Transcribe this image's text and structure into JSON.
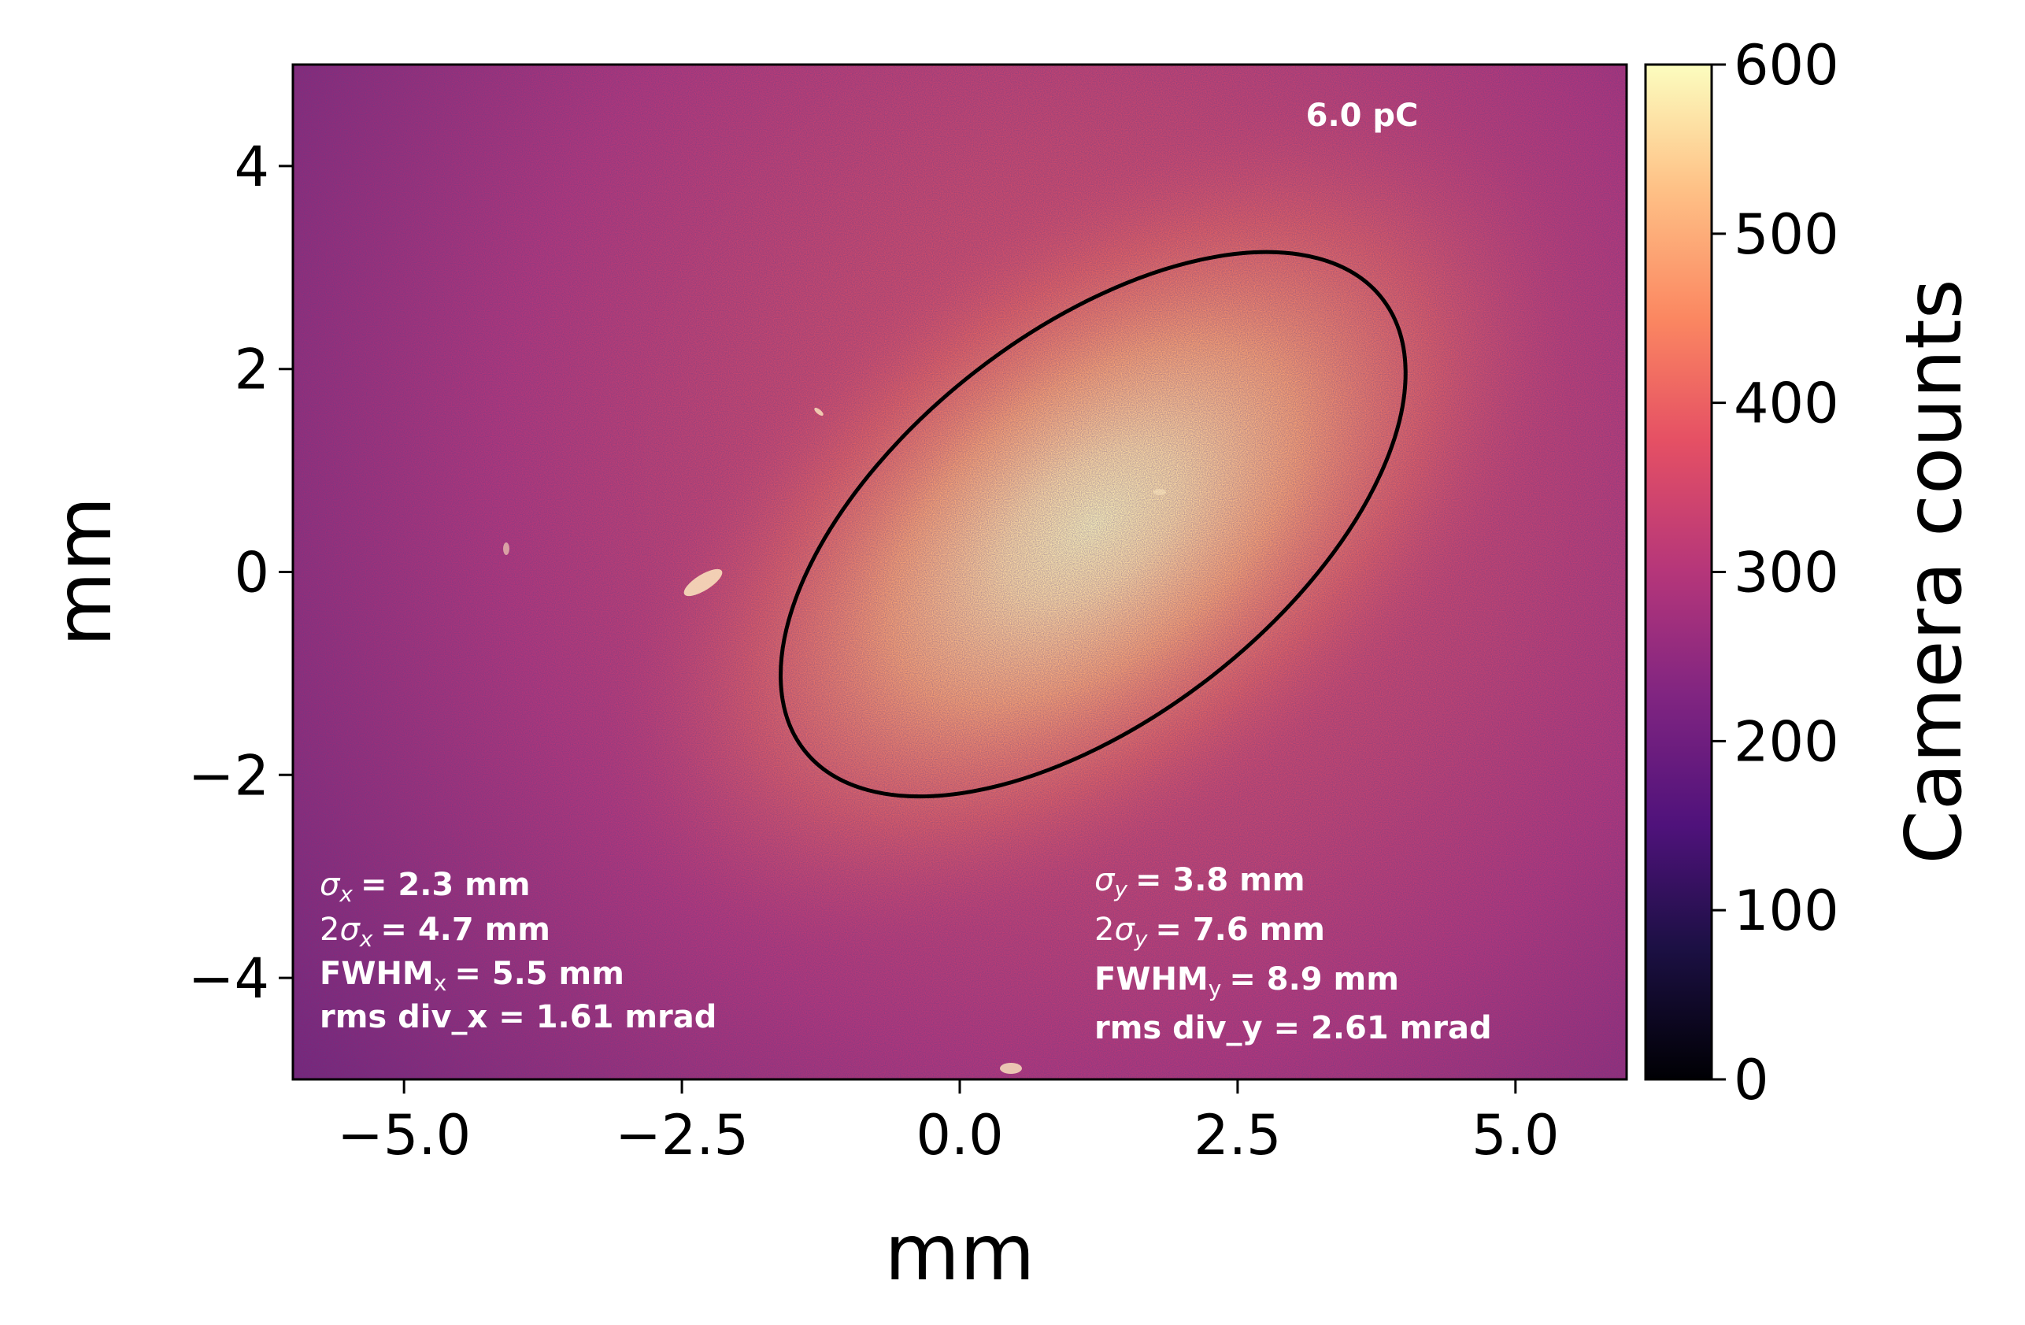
{
  "chart_data": {
    "type": "heatmap",
    "xlabel": "mm",
    "ylabel": "mm",
    "xlim": [
      -6.0,
      6.0
    ],
    "ylim": [
      -5.0,
      5.0
    ],
    "xticks": [
      -5.0,
      -2.5,
      0.0,
      2.5,
      5.0
    ],
    "xtick_labels": [
      "−5.0",
      "−2.5",
      "0.0",
      "2.5",
      "5.0"
    ],
    "yticks": [
      -4,
      -2,
      0,
      2,
      4
    ],
    "ytick_labels": [
      "−4",
      "−2",
      "0",
      "2",
      "4"
    ],
    "colormap": "magma",
    "colorbar": {
      "label": "Camera counts",
      "range": [
        0,
        600
      ],
      "ticks": [
        0,
        100,
        200,
        300,
        400,
        500,
        600
      ],
      "tick_labels": [
        "0",
        "100",
        "200",
        "300",
        "400",
        "500",
        "600"
      ]
    },
    "beam": {
      "center": [
        1.2,
        0.5
      ],
      "peak_counts": 560,
      "background_counts": 200
    },
    "ellipse": {
      "center": [
        1.2,
        0.47
      ],
      "semi_major": 3.3,
      "semi_minor": 1.9,
      "angle_deg": 38,
      "color": "#000000"
    },
    "annotations": {
      "charge": "6.0 pC",
      "x_stats": {
        "sigma": "= 2.3 mm",
        "two_sigma": "= 4.7 mm",
        "fwhm_prefix": "FWHM",
        "fwhm": "= 5.5 mm",
        "rms_div": "rms div_x = 1.61 mrad",
        "sub": "x"
      },
      "y_stats": {
        "sigma": "= 3.8 mm",
        "two_sigma": "= 7.6 mm",
        "fwhm_prefix": "FWHM",
        "fwhm": "= 8.9 mm",
        "rms_div": "rms div_y = 2.61 mrad",
        "sub": "y"
      }
    }
  }
}
